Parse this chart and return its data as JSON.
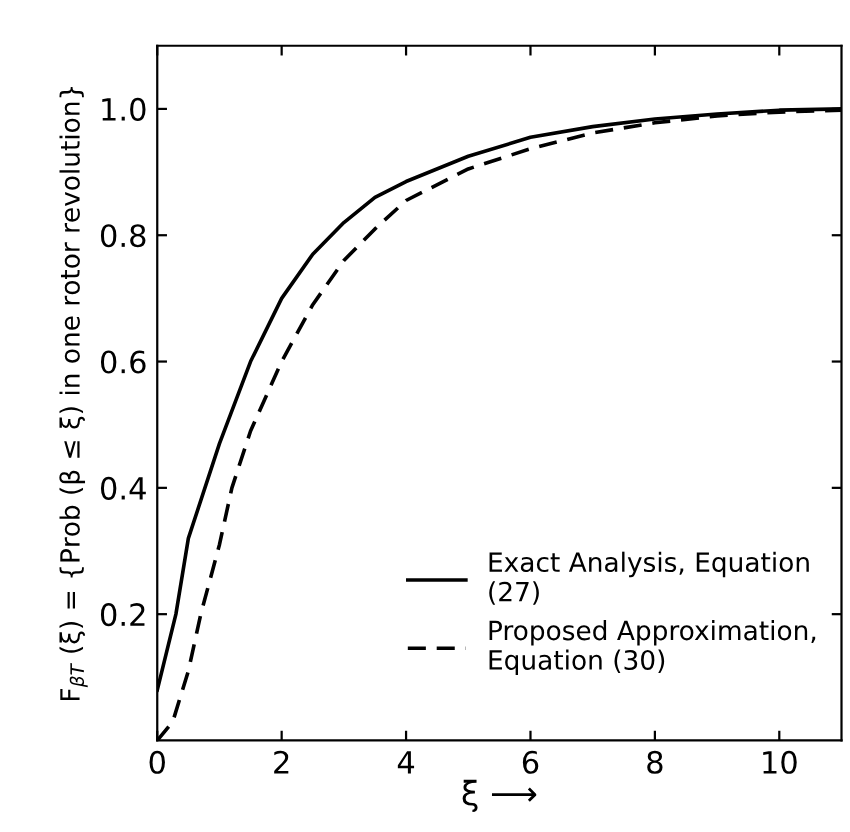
{
  "chart_data": {
    "type": "line",
    "xlabel": "ξ ⟶",
    "ylabel": "F$_{βT}$ (ξ) = {Prob (β ≤ ξ) in one rotor revolution}",
    "xlim": [
      0,
      11
    ],
    "ylim": [
      0,
      1.1
    ],
    "xticks": [
      0,
      2,
      4,
      6,
      8,
      10
    ],
    "yticks": [
      0.2,
      0.4,
      0.6,
      0.8,
      {
        "value": 1,
        "label": "1.0"
      }
    ],
    "grid": false,
    "legend": "bottom right",
    "series": [
      {
        "name": "Exact Analysis, Equation\n(27)",
        "color": "#000000",
        "line_style": "solid",
        "x": [
          0,
          0.3,
          0.5,
          1,
          1.5,
          2,
          2.5,
          3,
          3.5,
          4,
          5,
          6,
          7,
          8,
          9,
          10,
          11
        ],
        "values": [
          0.08,
          0.2,
          0.32,
          0.47,
          0.6,
          0.7,
          0.77,
          0.82,
          0.86,
          0.885,
          0.925,
          0.955,
          0.972,
          0.984,
          0.992,
          0.998,
          1.0
        ]
      },
      {
        "name": "Proposed Approximation,\nEquation (30)",
        "color": "#000000",
        "line_style": "dashed",
        "x": [
          0,
          0.25,
          0.5,
          0.7,
          1,
          1.2,
          1.5,
          2,
          2.5,
          3,
          3.5,
          4,
          5,
          6,
          7,
          8,
          9,
          10,
          11
        ],
        "values": [
          0,
          0.03,
          0.11,
          0.2,
          0.31,
          0.4,
          0.49,
          0.6,
          0.69,
          0.76,
          0.81,
          0.855,
          0.905,
          0.937,
          0.962,
          0.978,
          0.989,
          0.995,
          0.998
        ]
      }
    ]
  }
}
